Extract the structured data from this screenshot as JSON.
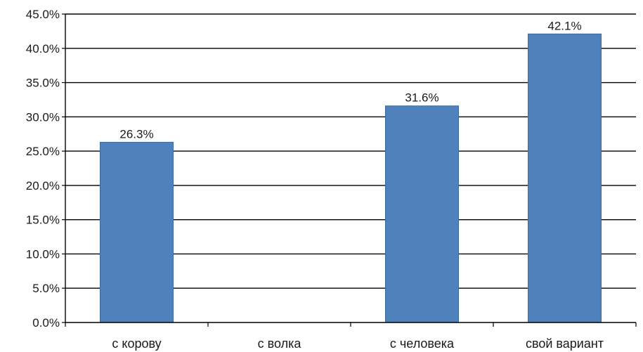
{
  "chart_data": {
    "type": "bar",
    "categories": [
      "с корову",
      "с волка",
      "с человека",
      "свой вариант"
    ],
    "values": [
      26.3,
      0,
      31.6,
      42.1
    ],
    "data_labels": [
      "26.3%",
      "",
      "31.6%",
      "42.1%"
    ],
    "ylim": [
      0,
      45
    ],
    "ytick_step": 5,
    "ytick_labels": [
      "0.0%",
      "5.0%",
      "10.0%",
      "15.0%",
      "20.0%",
      "25.0%",
      "30.0%",
      "35.0%",
      "40.0%",
      "45.0%"
    ],
    "grid": true,
    "legend": "none",
    "bar_color": "#4f81bd",
    "bar_edge_color": "#3a6aa3",
    "grid_color": "#000000"
  }
}
